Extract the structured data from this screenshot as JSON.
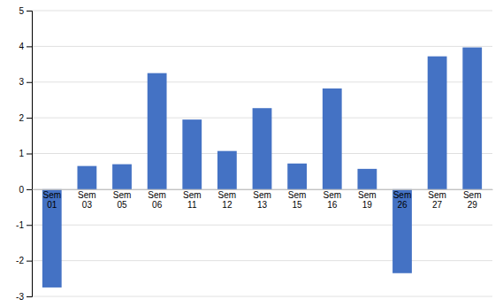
{
  "chart_data": {
    "type": "bar",
    "categories": [
      "Sem\n01",
      "Sem\n03",
      "Sem\n05",
      "Sem\n06",
      "Sem\n11",
      "Sem\n12",
      "Sem\n13",
      "Sem\n15",
      "Sem\n16",
      "Sem\n19",
      "Sem\n26",
      "Sem\n27",
      "Sem\n29"
    ],
    "values": [
      -2.75,
      0.65,
      0.7,
      3.25,
      1.95,
      1.07,
      2.27,
      0.72,
      2.82,
      0.57,
      -2.35,
      3.72,
      3.97
    ],
    "color": "#4472C4",
    "ylim": [
      -3,
      5
    ],
    "yticks": [
      -3,
      -2,
      -1,
      0,
      1,
      2,
      3,
      4,
      5
    ],
    "grid": true
  }
}
